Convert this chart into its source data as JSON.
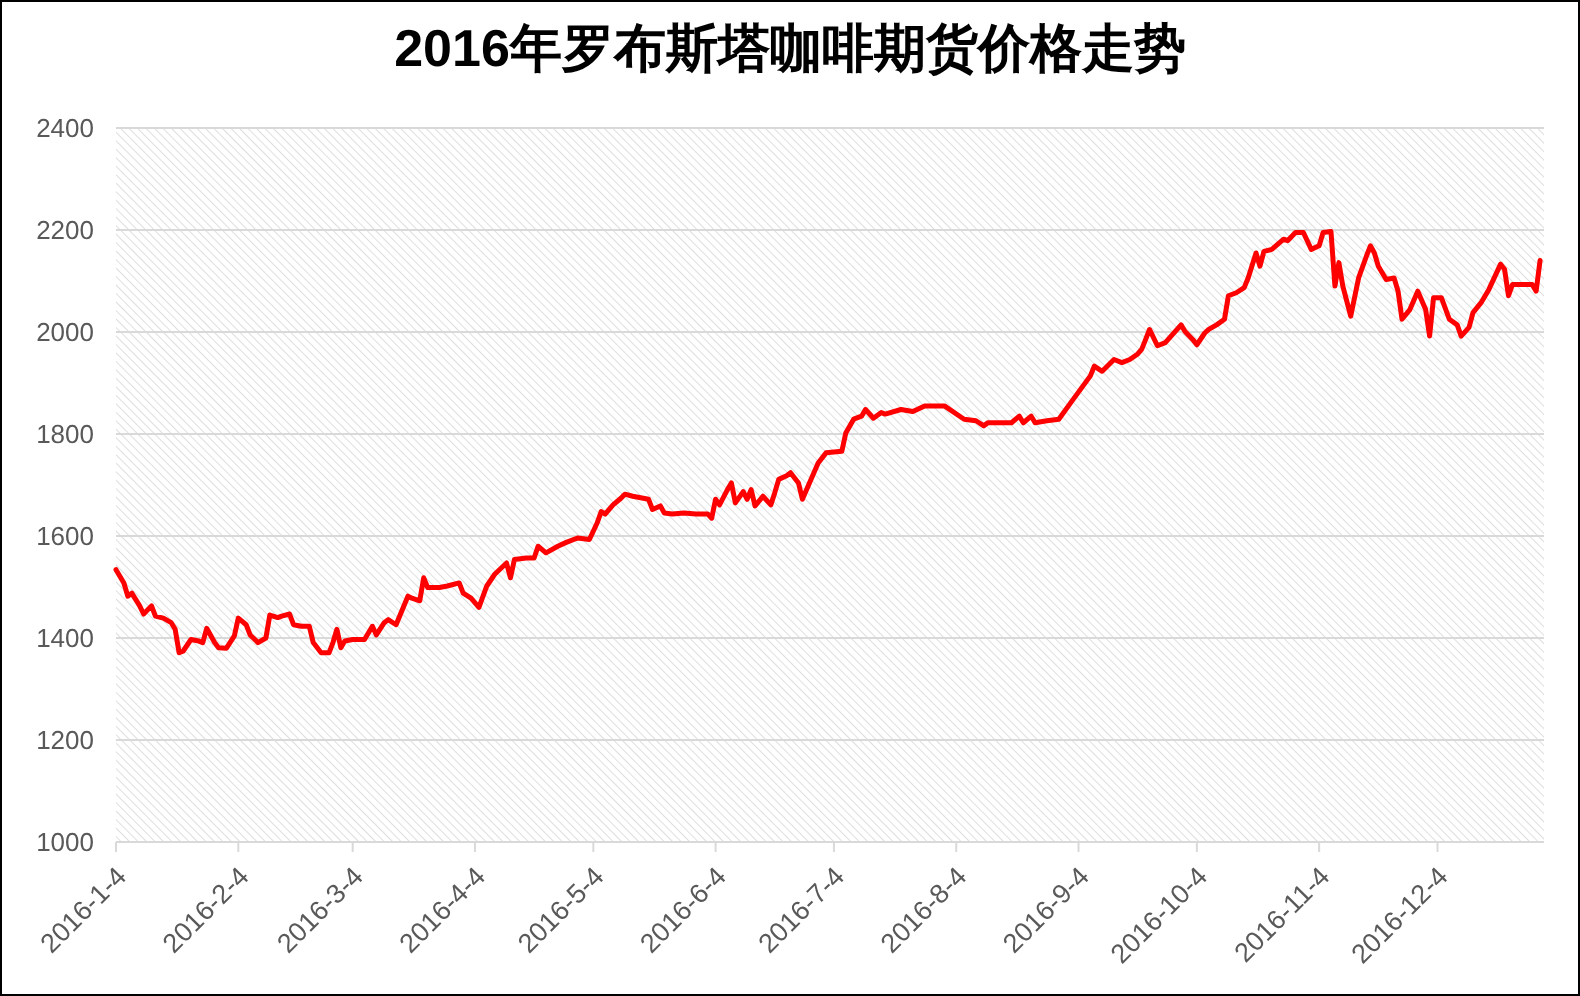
{
  "chart_data": {
    "type": "line",
    "title": "2016年罗布斯塔咖啡期货价格走势",
    "x": [
      "2016-01-04",
      "2016-01-06",
      "2016-01-07",
      "2016-01-08",
      "2016-01-10",
      "2016-01-11",
      "2016-01-13",
      "2016-01-14",
      "2016-01-16",
      "2016-01-18",
      "2016-01-19",
      "2016-01-20",
      "2016-01-21",
      "2016-01-23",
      "2016-01-25",
      "2016-01-26",
      "2016-01-27",
      "2016-01-29",
      "2016-01-30",
      "2016-02-01",
      "2016-02-03",
      "2016-02-04",
      "2016-02-06",
      "2016-02-07",
      "2016-02-09",
      "2016-02-11",
      "2016-02-12",
      "2016-02-14",
      "2016-02-15",
      "2016-02-17",
      "2016-02-18",
      "2016-02-20",
      "2016-02-22",
      "2016-02-23",
      "2016-02-25",
      "2016-02-27",
      "2016-02-28",
      "2016-02-29",
      "2016-03-01",
      "2016-03-02",
      "2016-03-04",
      "2016-03-07",
      "2016-03-09",
      "2016-03-10",
      "2016-03-12",
      "2016-03-13",
      "2016-03-15",
      "2016-03-18",
      "2016-03-19",
      "2016-03-21",
      "2016-03-22",
      "2016-03-23",
      "2016-03-26",
      "2016-03-28",
      "2016-03-31",
      "2016-04-01",
      "2016-04-03",
      "2016-04-05",
      "2016-04-07",
      "2016-04-09",
      "2016-04-12",
      "2016-04-13",
      "2016-04-14",
      "2016-04-17",
      "2016-04-19",
      "2016-04-20",
      "2016-04-22",
      "2016-04-25",
      "2016-04-27",
      "2016-04-30",
      "2016-05-03",
      "2016-05-05",
      "2016-05-06",
      "2016-05-07",
      "2016-05-09",
      "2016-05-11",
      "2016-05-12",
      "2016-05-14",
      "2016-05-18",
      "2016-05-19",
      "2016-05-21",
      "2016-05-22",
      "2016-05-24",
      "2016-05-27",
      "2016-05-30",
      "2016-06-02",
      "2016-06-03",
      "2016-06-04",
      "2016-06-05",
      "2016-06-07",
      "2016-06-08",
      "2016-06-09",
      "2016-06-11",
      "2016-06-12",
      "2016-06-13",
      "2016-06-14",
      "2016-06-16",
      "2016-06-18",
      "2016-06-19",
      "2016-06-20",
      "2016-06-22",
      "2016-06-23",
      "2016-06-25",
      "2016-06-26",
      "2016-06-30",
      "2016-07-02",
      "2016-07-06",
      "2016-07-07",
      "2016-07-09",
      "2016-07-11",
      "2016-07-12",
      "2016-07-14",
      "2016-07-16",
      "2016-07-17",
      "2016-07-21",
      "2016-07-24",
      "2016-07-27",
      "2016-08-01",
      "2016-08-06",
      "2016-08-09",
      "2016-08-11",
      "2016-08-12",
      "2016-08-18",
      "2016-08-20",
      "2016-08-21",
      "2016-08-23",
      "2016-08-24",
      "2016-08-27",
      "2016-08-30",
      "2016-09-02",
      "2016-09-07",
      "2016-09-08",
      "2016-09-10",
      "2016-09-13",
      "2016-09-15",
      "2016-09-17",
      "2016-09-19",
      "2016-09-20",
      "2016-09-21",
      "2016-09-22",
      "2016-09-24",
      "2016-09-26",
      "2016-09-30",
      "2016-10-01",
      "2016-10-03",
      "2016-10-04",
      "2016-10-06",
      "2016-10-07",
      "2016-10-09",
      "2016-10-11",
      "2016-10-12",
      "2016-10-14",
      "2016-10-16",
      "2016-10-17",
      "2016-10-19",
      "2016-10-20",
      "2016-10-21",
      "2016-10-23",
      "2016-10-26",
      "2016-10-27",
      "2016-10-29",
      "2016-10-31",
      "2016-11-02",
      "2016-11-04",
      "2016-11-05",
      "2016-11-07",
      "2016-11-08",
      "2016-11-09",
      "2016-11-10",
      "2016-11-12",
      "2016-11-14",
      "2016-11-16",
      "2016-11-17",
      "2016-11-18",
      "2016-11-19",
      "2016-11-21",
      "2016-11-23",
      "2016-11-24",
      "2016-11-25",
      "2016-11-27",
      "2016-11-29",
      "2016-12-01",
      "2016-12-02",
      "2016-12-03",
      "2016-12-05",
      "2016-12-07",
      "2016-12-09",
      "2016-12-10",
      "2016-12-12",
      "2016-12-13",
      "2016-12-15",
      "2016-12-17",
      "2016-12-20",
      "2016-12-21",
      "2016-12-22",
      "2016-12-23",
      "2016-12-26",
      "2016-12-28",
      "2016-12-29",
      "2016-12-30"
    ],
    "series": [
      {
        "color": "#ff0000",
        "values": [
          1534,
          1508,
          1482,
          1488,
          1463,
          1447,
          1463,
          1443,
          1439,
          1430,
          1417,
          1371,
          1374,
          1397,
          1394,
          1391,
          1419,
          1391,
          1381,
          1380,
          1404,
          1439,
          1426,
          1406,
          1391,
          1400,
          1445,
          1440,
          1443,
          1447,
          1426,
          1423,
          1423,
          1391,
          1371,
          1371,
          1391,
          1417,
          1381,
          1394,
          1397,
          1397,
          1423,
          1406,
          1430,
          1436,
          1426,
          1482,
          1478,
          1473,
          1518,
          1499,
          1499,
          1502,
          1508,
          1488,
          1478,
          1460,
          1502,
          1525,
          1547,
          1518,
          1554,
          1557,
          1557,
          1580,
          1567,
          1580,
          1587,
          1596,
          1593,
          1626,
          1648,
          1643,
          1661,
          1674,
          1682,
          1678,
          1672,
          1652,
          1659,
          1645,
          1643,
          1645,
          1643,
          1643,
          1635,
          1672,
          1661,
          1691,
          1704,
          1665,
          1687,
          1672,
          1691,
          1659,
          1678,
          1661,
          1685,
          1711,
          1718,
          1724,
          1704,
          1672,
          1743,
          1763,
          1766,
          1802,
          1829,
          1835,
          1848,
          1831,
          1842,
          1839,
          1848,
          1844,
          1855,
          1855,
          1829,
          1826,
          1816,
          1822,
          1822,
          1835,
          1822,
          1835,
          1822,
          1826,
          1829,
          1861,
          1914,
          1933,
          1923,
          1946,
          1940,
          1946,
          1957,
          1966,
          1985,
          2005,
          1973,
          1979,
          2014,
          2001,
          1985,
          1975,
          1998,
          2005,
          2014,
          2025,
          2071,
          2077,
          2087,
          2106,
          2155,
          2129,
          2158,
          2162,
          2182,
          2179,
          2195,
          2195,
          2162,
          2169,
          2195,
          2197,
          2090,
          2136,
          2090,
          2031,
          2106,
          2149,
          2169,
          2155,
          2129,
          2103,
          2106,
          2080,
          2025,
          2044,
          2080,
          2044,
          1992,
          2067,
          2067,
          2025,
          2014,
          1992,
          2009,
          2038,
          2057,
          2083,
          2133,
          2123,
          2071,
          2093,
          2093,
          2093,
          2080,
          2140
        ]
      }
    ],
    "xlim": [
      "2016-01-04",
      "2016-12-31"
    ],
    "xticks": [
      {
        "value": "2016-01-04",
        "label": "2016-1-4"
      },
      {
        "value": "2016-02-04",
        "label": "2016-2-4"
      },
      {
        "value": "2016-03-04",
        "label": "2016-3-4"
      },
      {
        "value": "2016-04-04",
        "label": "2016-4-4"
      },
      {
        "value": "2016-05-04",
        "label": "2016-5-4"
      },
      {
        "value": "2016-06-04",
        "label": "2016-6-4"
      },
      {
        "value": "2016-07-04",
        "label": "2016-7-4"
      },
      {
        "value": "2016-08-04",
        "label": "2016-8-4"
      },
      {
        "value": "2016-09-04",
        "label": "2016-9-4"
      },
      {
        "value": "2016-10-04",
        "label": "2016-10-4"
      },
      {
        "value": "2016-11-04",
        "label": "2016-11-4"
      },
      {
        "value": "2016-12-04",
        "label": "2016-12-4"
      }
    ],
    "ylim": [
      1000,
      2400
    ],
    "yticks": [
      1000,
      1200,
      1400,
      1600,
      1800,
      2000,
      2200,
      2400
    ],
    "grid": "y",
    "line_style": "solid"
  }
}
